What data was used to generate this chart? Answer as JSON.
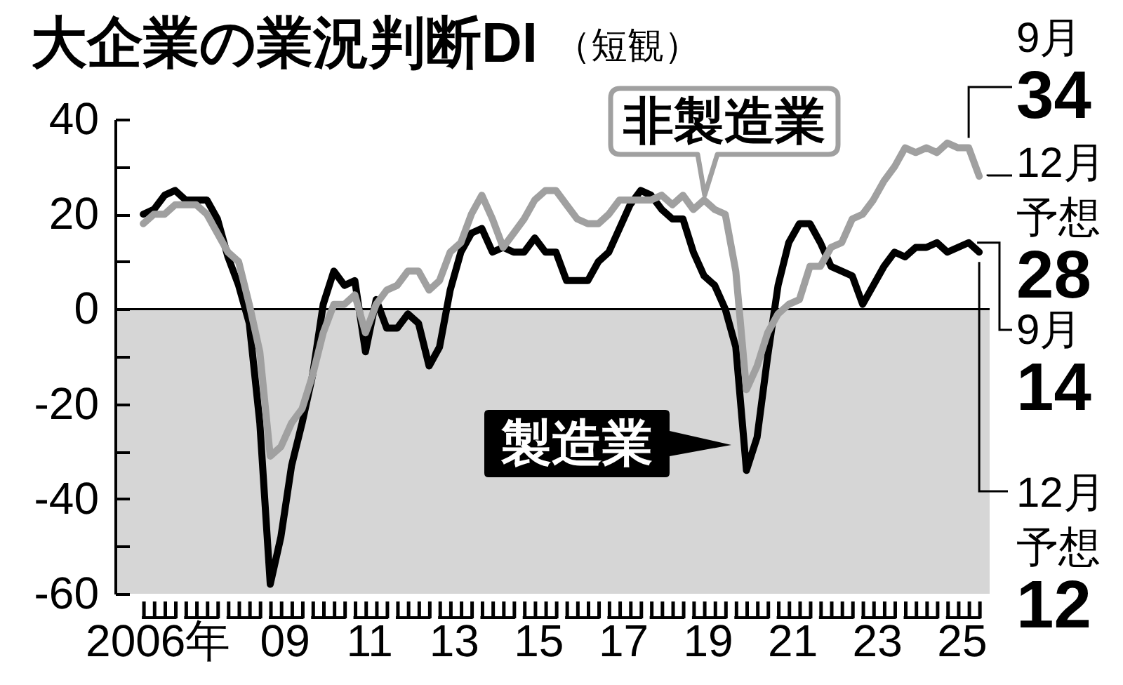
{
  "chart_data": {
    "type": "line",
    "title": "大企業の業況判断DI",
    "subtitle": "（短観）",
    "x": [
      "2006-03",
      "2006-06",
      "2006-09",
      "2006-12",
      "2007-03",
      "2007-06",
      "2007-09",
      "2007-12",
      "2008-03",
      "2008-06",
      "2008-09",
      "2008-12",
      "2009-03",
      "2009-06",
      "2009-09",
      "2009-12",
      "2010-03",
      "2010-06",
      "2010-09",
      "2010-12",
      "2011-03",
      "2011-06",
      "2011-09",
      "2011-12",
      "2012-03",
      "2012-06",
      "2012-09",
      "2012-12",
      "2013-03",
      "2013-06",
      "2013-09",
      "2013-12",
      "2014-03",
      "2014-06",
      "2014-09",
      "2014-12",
      "2015-03",
      "2015-06",
      "2015-09",
      "2015-12",
      "2016-03",
      "2016-06",
      "2016-09",
      "2016-12",
      "2017-03",
      "2017-06",
      "2017-09",
      "2017-12",
      "2018-03",
      "2018-06",
      "2018-09",
      "2018-12",
      "2019-03",
      "2019-06",
      "2019-09",
      "2019-12",
      "2020-03",
      "2020-06",
      "2020-09",
      "2020-12",
      "2021-03",
      "2021-06",
      "2021-09",
      "2021-12",
      "2022-03",
      "2022-06",
      "2022-09",
      "2022-12",
      "2023-03",
      "2023-06",
      "2023-09",
      "2023-12",
      "2024-03",
      "2024-06",
      "2024-09",
      "2024-12",
      "2025-03",
      "2025-06",
      "2025-09",
      "2025-12"
    ],
    "series": [
      {
        "name": "製造業",
        "color": "#000000",
        "values": [
          20,
          21,
          24,
          25,
          23,
          23,
          23,
          19,
          11,
          5,
          -3,
          -24,
          -58,
          -48,
          -33,
          -24,
          -14,
          1,
          8,
          5,
          6,
          -9,
          2,
          -4,
          -4,
          -1,
          -3,
          -12,
          -8,
          4,
          12,
          16,
          17,
          12,
          13,
          12,
          12,
          15,
          12,
          12,
          6,
          6,
          6,
          10,
          12,
          17,
          22,
          25,
          24,
          21,
          19,
          19,
          12,
          7,
          5,
          0,
          -8,
          -34,
          -27,
          -10,
          5,
          14,
          18,
          18,
          14,
          9,
          8,
          7,
          1,
          5,
          9,
          12,
          11,
          13,
          13,
          14,
          12,
          13,
          14,
          12
        ]
      },
      {
        "name": "非製造業",
        "color": "#a0a0a0",
        "values": [
          18,
          20,
          20,
          22,
          22,
          22,
          20,
          16,
          12,
          10,
          1,
          -9,
          -31,
          -29,
          -24,
          -21,
          -14,
          -5,
          1,
          1,
          3,
          -5,
          1,
          4,
          5,
          8,
          8,
          4,
          6,
          12,
          14,
          20,
          24,
          19,
          13,
          16,
          19,
          23,
          25,
          25,
          22,
          19,
          18,
          18,
          20,
          23,
          23,
          23,
          23,
          24,
          22,
          24,
          21,
          23,
          21,
          20,
          8,
          -17,
          -12,
          -5,
          -1,
          1,
          2,
          9,
          9,
          13,
          14,
          19,
          20,
          23,
          27,
          30,
          34,
          33,
          34,
          33,
          35,
          34,
          34,
          28
        ]
      }
    ],
    "xlim": [
      "2005-07",
      "2026-03"
    ],
    "ylim": [
      -60,
      40
    ],
    "xticks": [
      {
        "value": "2006-03",
        "label": null
      },
      {
        "value": "2006-06",
        "label": null
      },
      {
        "value": "2006-07",
        "label": "2006年"
      },
      {
        "value": "2006-09",
        "label": null
      },
      {
        "value": "2006-12",
        "label": null
      },
      {
        "value": "2007-03",
        "label": null
      },
      {
        "value": "2007-06",
        "label": null
      },
      {
        "value": "2007-09",
        "label": null
      },
      {
        "value": "2007-12",
        "label": null
      },
      {
        "value": "2008-03",
        "label": null
      },
      {
        "value": "2008-06",
        "label": null
      },
      {
        "value": "2008-09",
        "label": null
      },
      {
        "value": "2008-12",
        "label": null
      },
      {
        "value": "2009-03",
        "label": null
      },
      {
        "value": "2009-06",
        "label": null
      },
      {
        "value": "2009-07",
        "label": "09"
      },
      {
        "value": "2009-09",
        "label": null
      },
      {
        "value": "2009-12",
        "label": null
      },
      {
        "value": "2010-03",
        "label": null
      },
      {
        "value": "2010-06",
        "label": null
      },
      {
        "value": "2010-09",
        "label": null
      },
      {
        "value": "2010-12",
        "label": null
      },
      {
        "value": "2011-03",
        "label": null
      },
      {
        "value": "2011-06",
        "label": null
      },
      {
        "value": "2011-07",
        "label": "11"
      },
      {
        "value": "2011-09",
        "label": null
      },
      {
        "value": "2011-12",
        "label": null
      },
      {
        "value": "2012-03",
        "label": null
      },
      {
        "value": "2012-06",
        "label": null
      },
      {
        "value": "2012-09",
        "label": null
      },
      {
        "value": "2012-12",
        "label": null
      },
      {
        "value": "2013-03",
        "label": null
      },
      {
        "value": "2013-06",
        "label": null
      },
      {
        "value": "2013-07",
        "label": "13"
      },
      {
        "value": "2013-09",
        "label": null
      },
      {
        "value": "2013-12",
        "label": null
      },
      {
        "value": "2014-03",
        "label": null
      },
      {
        "value": "2014-06",
        "label": null
      },
      {
        "value": "2014-09",
        "label": null
      },
      {
        "value": "2014-12",
        "label": null
      },
      {
        "value": "2015-03",
        "label": null
      },
      {
        "value": "2015-06",
        "label": null
      },
      {
        "value": "2015-07",
        "label": "15"
      },
      {
        "value": "2015-09",
        "label": null
      },
      {
        "value": "2015-12",
        "label": null
      },
      {
        "value": "2016-03",
        "label": null
      },
      {
        "value": "2016-06",
        "label": null
      },
      {
        "value": "2016-09",
        "label": null
      },
      {
        "value": "2016-12",
        "label": null
      },
      {
        "value": "2017-03",
        "label": null
      },
      {
        "value": "2017-06",
        "label": null
      },
      {
        "value": "2017-07",
        "label": "17"
      },
      {
        "value": "2017-09",
        "label": null
      },
      {
        "value": "2017-12",
        "label": null
      },
      {
        "value": "2018-03",
        "label": null
      },
      {
        "value": "2018-06",
        "label": null
      },
      {
        "value": "2018-09",
        "label": null
      },
      {
        "value": "2018-12",
        "label": null
      },
      {
        "value": "2019-03",
        "label": null
      },
      {
        "value": "2019-06",
        "label": null
      },
      {
        "value": "2019-07",
        "label": "19"
      },
      {
        "value": "2019-09",
        "label": null
      },
      {
        "value": "2019-12",
        "label": null
      },
      {
        "value": "2020-03",
        "label": null
      },
      {
        "value": "2020-06",
        "label": null
      },
      {
        "value": "2020-09",
        "label": null
      },
      {
        "value": "2020-12",
        "label": null
      },
      {
        "value": "2021-03",
        "label": null
      },
      {
        "value": "2021-06",
        "label": null
      },
      {
        "value": "2021-07",
        "label": "21"
      },
      {
        "value": "2021-09",
        "label": null
      },
      {
        "value": "2021-12",
        "label": null
      },
      {
        "value": "2022-03",
        "label": null
      },
      {
        "value": "2022-06",
        "label": null
      },
      {
        "value": "2022-09",
        "label": null
      },
      {
        "value": "2022-12",
        "label": null
      },
      {
        "value": "2023-03",
        "label": null
      },
      {
        "value": "2023-06",
        "label": null
      },
      {
        "value": "2023-07",
        "label": "23"
      },
      {
        "value": "2023-09",
        "label": null
      },
      {
        "value": "2023-12",
        "label": null
      },
      {
        "value": "2024-03",
        "label": null
      },
      {
        "value": "2024-06",
        "label": null
      },
      {
        "value": "2024-09",
        "label": null
      },
      {
        "value": "2024-12",
        "label": null
      },
      {
        "value": "2025-03",
        "label": null
      },
      {
        "value": "2025-06",
        "label": null
      },
      {
        "value": "2025-07",
        "label": "25"
      },
      {
        "value": "2025-09",
        "label": null
      },
      {
        "value": "2025-12",
        "label": null
      }
    ],
    "yticks": [
      -60,
      {
        "value": -50,
        "label": null
      },
      -40,
      {
        "value": -30,
        "label": null
      },
      -20,
      {
        "value": -10,
        "label": null
      },
      0,
      {
        "value": 10,
        "label": null
      },
      20,
      {
        "value": 30,
        "label": null
      },
      40
    ],
    "ref_lines": [
      {
        "axis": "y",
        "value": 0,
        "color": "#000000"
      }
    ],
    "bands": [
      {
        "axis": "y",
        "from": -60,
        "to": 0,
        "color": "#d6d6d6"
      }
    ],
    "annotations": [
      {
        "text": "9月\n34",
        "x": "2025-09",
        "y": 34
      },
      {
        "text": "12月予想\n28",
        "x": "2025-12",
        "y": 28
      },
      {
        "text": "9月\n14",
        "x": "2025-09",
        "y": 14
      },
      {
        "text": "12月予想\n12",
        "x": "2025-12",
        "y": 12
      }
    ]
  }
}
